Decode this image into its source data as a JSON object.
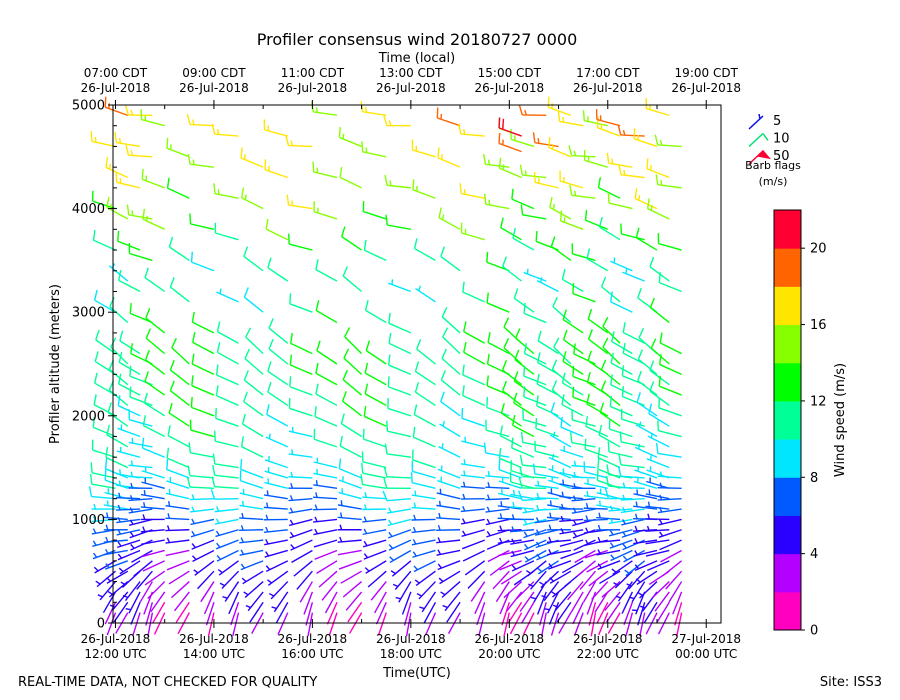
{
  "chart_data": {
    "type": "wind-barb-time-height",
    "title": "Profiler consensus wind 20180727 0000",
    "xlabel": "Time(UTC)",
    "x2label": "Time (local)",
    "ylabel": "Profiler altitude (meters)",
    "xlim_hours_utc": [
      11.95,
      24.3
    ],
    "ylim": [
      0,
      5000
    ],
    "yticks": [
      0,
      1000,
      2000,
      3000,
      4000,
      5000
    ],
    "yminor_step": 200,
    "x_minor_step_hours": 1,
    "bottom_ticks": [
      {
        "h": 12,
        "date": "26-Jul-2018",
        "time": "12:00 UTC"
      },
      {
        "h": 14,
        "date": "26-Jul-2018",
        "time": "14:00 UTC"
      },
      {
        "h": 16,
        "date": "26-Jul-2018",
        "time": "16:00 UTC"
      },
      {
        "h": 18,
        "date": "26-Jul-2018",
        "time": "18:00 UTC"
      },
      {
        "h": 20,
        "date": "26-Jul-2018",
        "time": "20:00 UTC"
      },
      {
        "h": 22,
        "date": "26-Jul-2018",
        "time": "22:00 UTC"
      },
      {
        "h": 24,
        "date": "27-Jul-2018",
        "time": "00:00 UTC"
      }
    ],
    "top_ticks": [
      {
        "h": 12,
        "time": "07:00 CDT",
        "date": "26-Jul-2018"
      },
      {
        "h": 14,
        "time": "09:00 CDT",
        "date": "26-Jul-2018"
      },
      {
        "h": 16,
        "time": "11:00 CDT",
        "date": "26-Jul-2018"
      },
      {
        "h": 18,
        "time": "13:00 CDT",
        "date": "26-Jul-2018"
      },
      {
        "h": 20,
        "time": "15:00 CDT",
        "date": "26-Jul-2018"
      },
      {
        "h": 22,
        "time": "17:00 CDT",
        "date": "26-Jul-2018"
      },
      {
        "h": 24,
        "time": "19:00 CDT",
        "date": "26-Jul-2018"
      }
    ],
    "legend": {
      "placement": "upper-right",
      "items": [
        {
          "label": "5",
          "color": "#1010e0"
        },
        {
          "label": "10",
          "color": "#00e070"
        },
        {
          "label": "50",
          "color": "#ff0033"
        }
      ],
      "caption_line1": "Barb flags",
      "caption_line2": "(m/s)"
    },
    "colorbar": {
      "label": "Wind speed (m/s)",
      "ticks": [
        0,
        4,
        8,
        12,
        16,
        20
      ],
      "bounds": [
        0,
        2,
        4,
        6,
        8,
        10,
        12,
        14,
        16,
        18,
        20,
        22
      ],
      "colors": [
        "#ff00c0",
        "#b400ff",
        "#2a00ff",
        "#005aff",
        "#00e6ff",
        "#00ff96",
        "#00ff00",
        "#87ff00",
        "#ffe600",
        "#ff6400",
        "#ff0032"
      ]
    },
    "time_columns_utc": [
      12.0,
      12.25,
      12.5,
      12.75,
      13.0,
      13.5,
      14.0,
      14.5,
      15.0,
      15.5,
      16.0,
      16.5,
      17.0,
      17.5,
      18.0,
      18.5,
      19.0,
      19.5,
      20.0,
      20.25,
      20.5,
      20.75,
      21.0,
      21.25,
      21.5,
      21.75,
      22.0,
      22.25,
      22.5,
      22.75,
      23.0,
      23.25,
      23.5
    ],
    "profiles": [
      {
        "z": 100,
        "spd": 2.5,
        "dir": 200
      },
      {
        "z": 300,
        "spd": 3.5,
        "dir": 210
      },
      {
        "z": 500,
        "spd": 4.5,
        "dir": 230
      },
      {
        "z": 700,
        "spd": 5.0,
        "dir": 250
      },
      {
        "z": 900,
        "spd": 6.0,
        "dir": 260
      },
      {
        "z": 1100,
        "spd": 7.5,
        "dir": 270
      },
      {
        "z": 1300,
        "spd": 9.0,
        "dir": 280
      },
      {
        "z": 1500,
        "spd": 10.0,
        "dir": 285
      },
      {
        "z": 1700,
        "spd": 10.5,
        "dir": 290
      },
      {
        "z": 1900,
        "spd": 11.0,
        "dir": 295
      },
      {
        "z": 2100,
        "spd": 11.5,
        "dir": 300
      },
      {
        "z": 2300,
        "spd": 12.0,
        "dir": 300
      },
      {
        "z": 2500,
        "spd": 12.5,
        "dir": 305
      },
      {
        "z": 2700,
        "spd": 12.5,
        "dir": 305
      },
      {
        "z": 3000,
        "spd": 11.0,
        "dir": 300
      },
      {
        "z": 3300,
        "spd": 10.0,
        "dir": 300
      },
      {
        "z": 3800,
        "spd": 14.0,
        "dir": 290
      },
      {
        "z": 4300,
        "spd": 16.0,
        "dir": 285
      },
      {
        "z": 4800,
        "spd": 17.0,
        "dir": 280
      }
    ],
    "gust_cells": [
      {
        "h": 20.25,
        "z": 4700,
        "spd": 20.0,
        "dir": 290
      },
      {
        "h": 20.25,
        "z": 4550,
        "spd": 19.0,
        "dir": 290
      },
      {
        "h": 22.25,
        "z": 4800,
        "spd": 19.0,
        "dir": 285
      }
    ]
  },
  "footer": {
    "left_note": "REAL-TIME DATA, NOT CHECKED FOR QUALITY",
    "site": "Site: ISS3"
  }
}
